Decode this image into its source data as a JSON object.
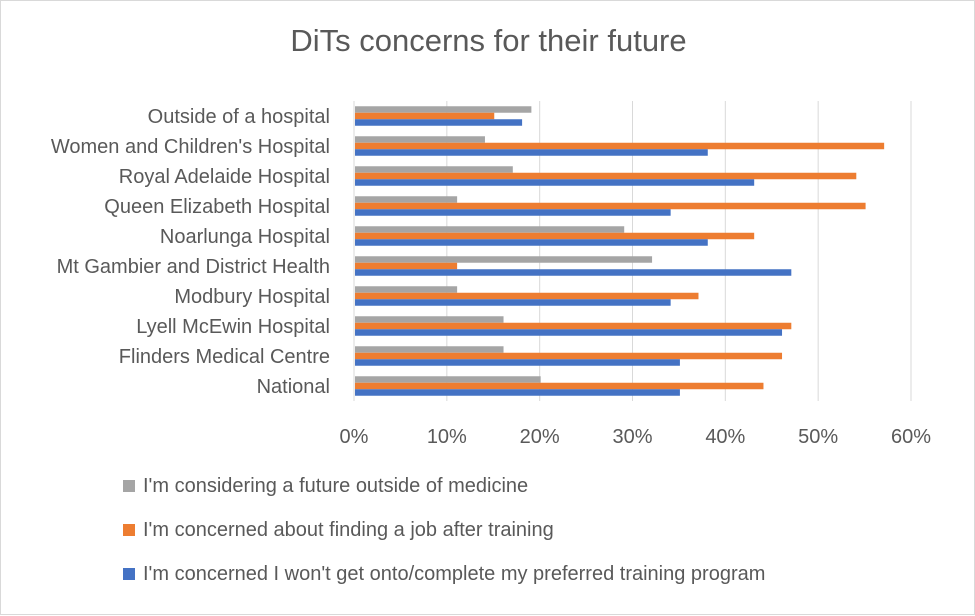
{
  "chart_data": {
    "type": "bar",
    "orientation": "horizontal",
    "title": "DiTs concerns for their future",
    "categories": [
      "Outside of a hospital",
      "Women and Children's Hospital",
      "Royal Adelaide Hospital",
      "Queen Elizabeth Hospital",
      "Noarlunga Hospital",
      "Mt Gambier and District Health",
      "Modbury Hospital",
      "Lyell McEwin Hospital",
      "Flinders Medical Centre",
      "National"
    ],
    "series": [
      {
        "name": "I'm considering a future outside of medicine",
        "color": "#a5a5a5",
        "values": [
          19,
          14,
          17,
          11,
          29,
          32,
          11,
          16,
          16,
          20
        ]
      },
      {
        "name": "I'm concerned about finding a job after training",
        "color": "#ed7d31",
        "values": [
          15,
          57,
          54,
          55,
          43,
          11,
          37,
          47,
          46,
          44
        ]
      },
      {
        "name": "I'm concerned I won't get onto/complete my preferred training program",
        "color": "#4472c4",
        "values": [
          18,
          38,
          43,
          34,
          38,
          47,
          34,
          46,
          35,
          35
        ]
      }
    ],
    "xlim": [
      0,
      60
    ],
    "xticks": [
      "0%",
      "10%",
      "20%",
      "30%",
      "40%",
      "50%",
      "60%"
    ],
    "grid": true,
    "legend_position": "bottom"
  }
}
